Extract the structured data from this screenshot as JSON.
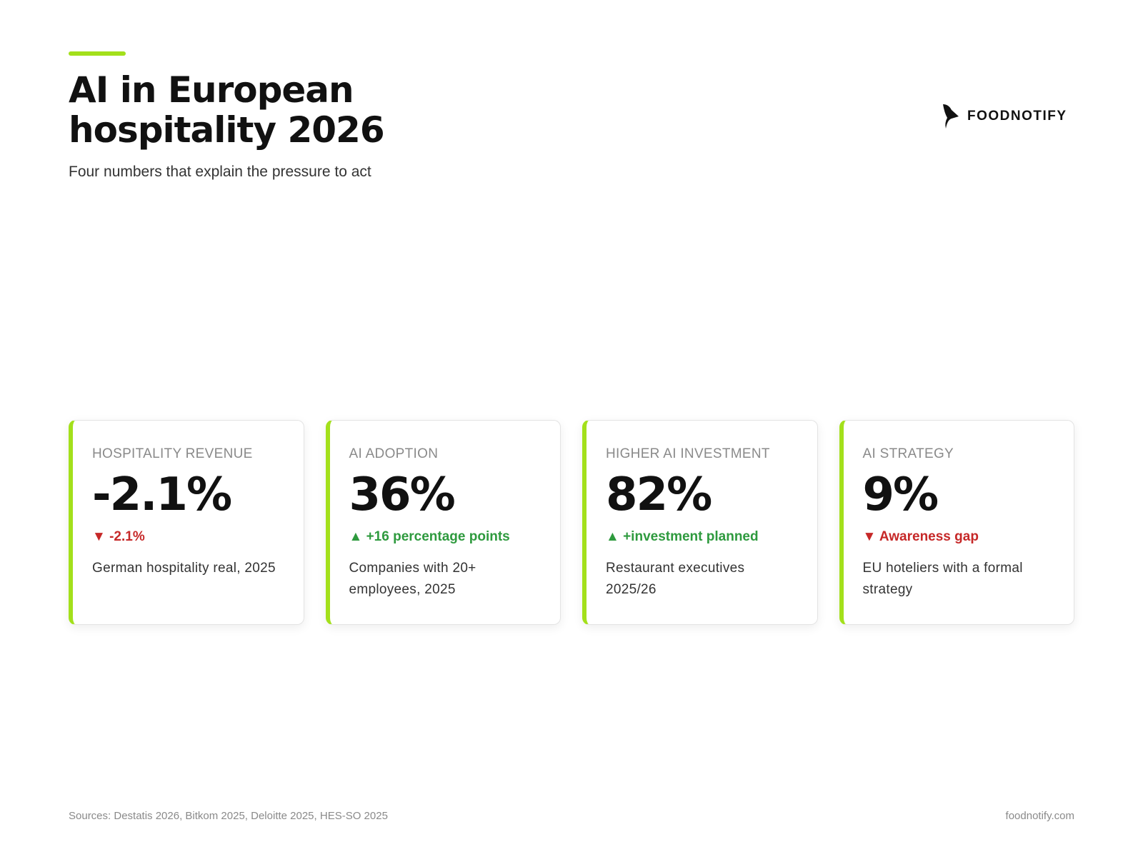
{
  "header": {
    "title": "AI in European hospitality 2026",
    "subtitle": "Four numbers that explain the pressure to act",
    "brand": "FOODNOTIFY"
  },
  "cards": [
    {
      "label": "HOSPITALITY REVENUE",
      "value": "-2.1%",
      "change": "▼ -2.1%",
      "change_color": "#c62828",
      "description": "German hospitality real, 2025"
    },
    {
      "label": "AI ADOPTION",
      "value": "36%",
      "change": "▲ +16 percentage points",
      "change_color": "#2e9a3e",
      "description": "Companies with 20+ employees, 2025"
    },
    {
      "label": "HIGHER AI INVESTMENT",
      "value": "82%",
      "change": "▲ +investment planned",
      "change_color": "#2e9a3e",
      "description": "Restaurant executives 2025/26"
    },
    {
      "label": "AI STRATEGY",
      "value": "9%",
      "change": "▼ Awareness gap",
      "change_color": "#c62828",
      "description": "EU hoteliers with a formal strategy"
    }
  ],
  "footer": {
    "sources": "Sources: Destatis 2026, Bitkom 2025, Deloitte 2025, HES-SO 2025",
    "site": "foodnotify.com"
  }
}
